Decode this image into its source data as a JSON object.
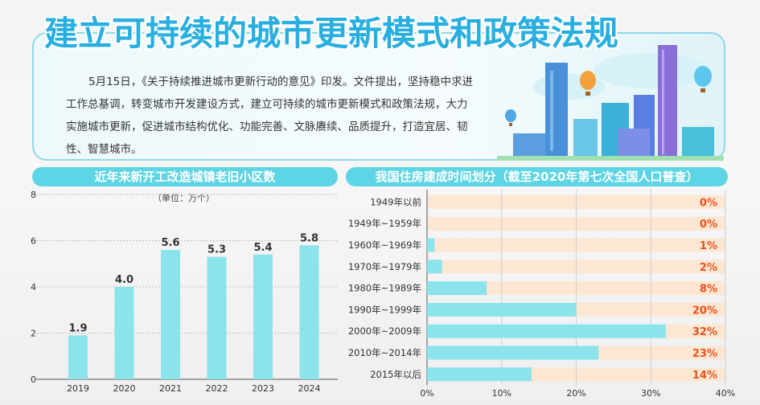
{
  "header": {
    "title": "建立可持续的城市更新模式和政策法规",
    "intro": "5月15日，《关于持续推进城市更新行动的意见》印发。文件提出，坚持稳中求进工作总基调，转变城市开发建设方式，建立可持续的城市更新模式和政策法规，大力实施城市更新，促进城市结构优化、功能完善、文脉赓续、品质提升，打造宜居、韧性、智慧城市。"
  },
  "colors": {
    "accent": "#5dd5e4",
    "bar": "#8be3ec",
    "title": "#29aee0",
    "pct": "#e8541c",
    "track": "#fde6d2"
  },
  "chart_data": [
    {
      "type": "bar",
      "title": "近年来新开工改造城镇老旧小区数",
      "unit_label": "（单位：万个）",
      "categories": [
        "2019",
        "2020",
        "2021",
        "2022",
        "2023",
        "2024"
      ],
      "values": [
        1.9,
        4.0,
        5.6,
        5.3,
        5.4,
        5.8
      ],
      "value_labels": [
        "1.9",
        "4.0",
        "5.6",
        "5.3",
        "5.4",
        "5.8"
      ],
      "yticks": [
        "0",
        "2",
        "4",
        "6",
        "8"
      ],
      "ylim": [
        0,
        8
      ],
      "grid": true
    },
    {
      "type": "bar",
      "orientation": "horizontal",
      "title": "我国住房建成时间划分（截至2020年第七次全国人口普查）",
      "categories": [
        "1949年以前",
        "1949年~1959年",
        "1960年~1969年",
        "1970年~1979年",
        "1980年~1989年",
        "1990年~1999年",
        "2000年~2009年",
        "2010年~2014年",
        "2015年以后"
      ],
      "values": [
        0,
        0,
        1,
        2,
        8,
        20,
        32,
        23,
        14
      ],
      "value_labels": [
        "0%",
        "0%",
        "1%",
        "2%",
        "8%",
        "20%",
        "32%",
        "23%",
        "14%"
      ],
      "xticks": [
        "0%",
        "10%",
        "20%",
        "30%",
        "40%"
      ],
      "xlim": [
        0,
        40
      ],
      "grid": true
    }
  ]
}
